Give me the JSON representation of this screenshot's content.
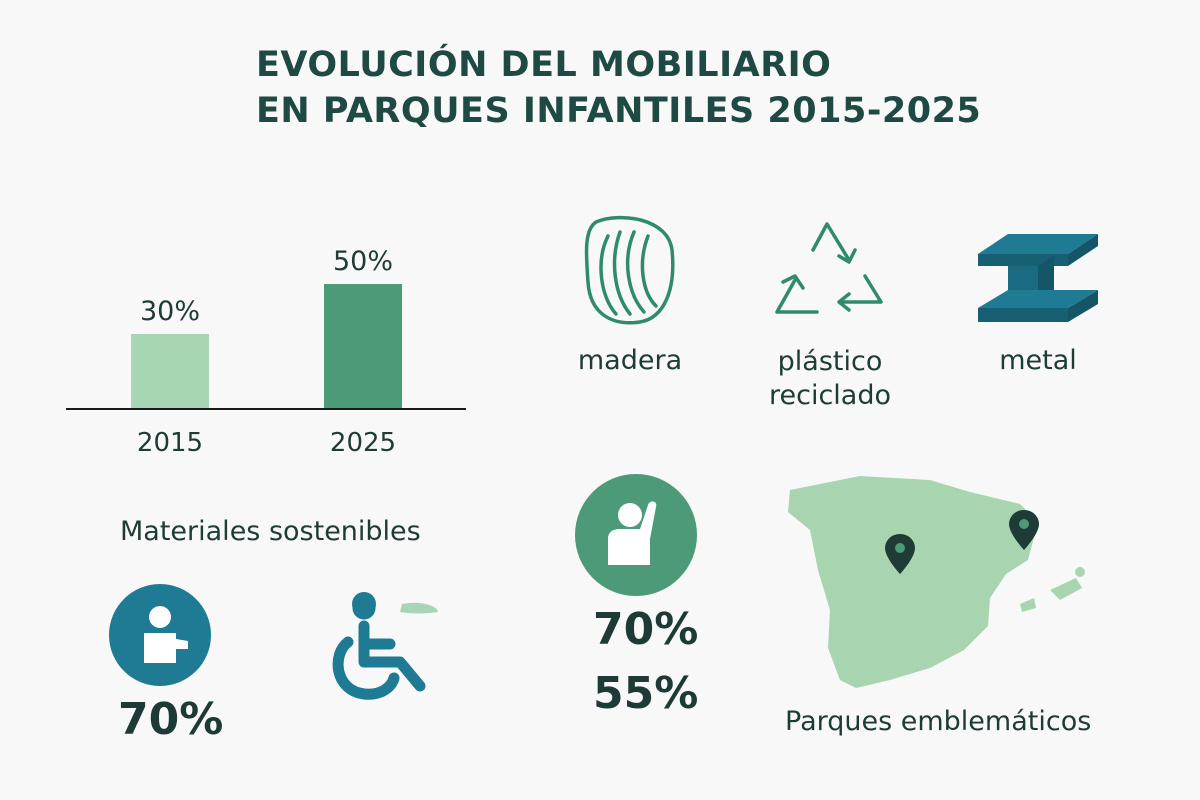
{
  "title_line1": "EVOLUCIÓN DEL MOBILIARIO",
  "title_line2": "EN PARQUES INFANTILES 2015-2025",
  "chart_data": {
    "type": "bar",
    "title": "",
    "categories": [
      "2015",
      "2025"
    ],
    "values": [
      30,
      50
    ],
    "value_labels": [
      "30%",
      "50%"
    ],
    "xlabel": "Materiales sostenibles",
    "ylabel": "",
    "ylim": [
      0,
      80
    ],
    "bar_colors": [
      "#a8d5b3",
      "#4c9a77"
    ]
  },
  "materials": [
    {
      "icon": "wood-icon",
      "label": "madera"
    },
    {
      "icon": "recycle-icon",
      "label": "plástico\nreciclado"
    },
    {
      "icon": "steel-beam-icon",
      "label": "metal"
    }
  ],
  "stats": {
    "child_pct": "70%",
    "play_pct_1": "70%",
    "play_pct_2": "55%"
  },
  "map_caption": "Parques emblemáticos",
  "colors": {
    "teal": "#1f7a93",
    "green": "#4c9a77",
    "light_green": "#a8d5b3",
    "map": "#a8d5b0",
    "dark": "#1f3b36"
  }
}
